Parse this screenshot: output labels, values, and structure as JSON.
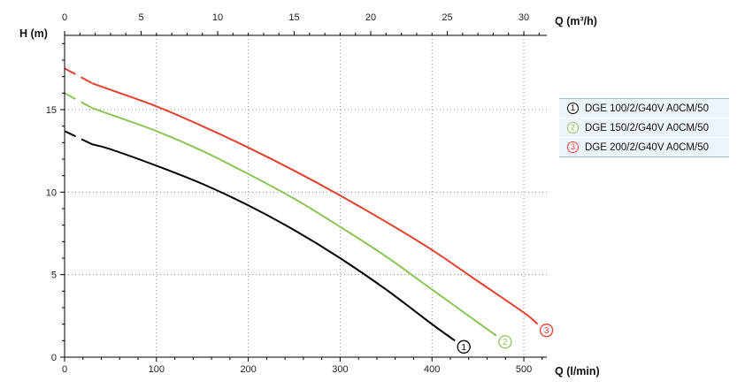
{
  "chart_data": {
    "type": "line",
    "x_label": "Q (l/min)",
    "y_label": "H (m)",
    "x2_label": "Q (m³/h)",
    "xlim": [
      0,
      525
    ],
    "ylim": [
      0,
      19.5
    ],
    "x2lim": [
      0,
      31.5
    ],
    "x_ticks": [
      0,
      100,
      200,
      300,
      400,
      500
    ],
    "x2_ticks": [
      0,
      5,
      10,
      15,
      20,
      25,
      30
    ],
    "y_ticks": [
      0,
      5,
      10,
      15
    ],
    "grid": true,
    "legend_position": "right",
    "series": [
      {
        "name": "DGE 100/2/G40V A0CM/50",
        "marker": "1",
        "color": "#000000",
        "x": [
          0,
          30,
          50,
          100,
          150,
          200,
          250,
          300,
          350,
          400,
          425
        ],
        "y": [
          13.7,
          12.9,
          12.6,
          11.6,
          10.5,
          9.2,
          7.7,
          6.0,
          4.1,
          2.0,
          1.0
        ]
      },
      {
        "name": "DGE 150/2/G40V A0CM/50",
        "marker": "2",
        "color": "#8ec45a",
        "x": [
          0,
          30,
          50,
          100,
          150,
          200,
          250,
          300,
          350,
          400,
          450,
          470
        ],
        "y": [
          16.0,
          15.1,
          14.7,
          13.7,
          12.5,
          11.1,
          9.6,
          7.9,
          6.1,
          4.1,
          2.1,
          1.3
        ]
      },
      {
        "name": "DGE 200/2/G40V A0CM/50",
        "marker": "3",
        "color": "#e2412f",
        "x": [
          0,
          30,
          50,
          100,
          150,
          200,
          250,
          300,
          350,
          400,
          450,
          500,
          515
        ],
        "y": [
          17.5,
          16.6,
          16.2,
          15.2,
          14.0,
          12.7,
          11.3,
          9.8,
          8.2,
          6.5,
          4.6,
          2.7,
          2.0
        ]
      }
    ]
  }
}
